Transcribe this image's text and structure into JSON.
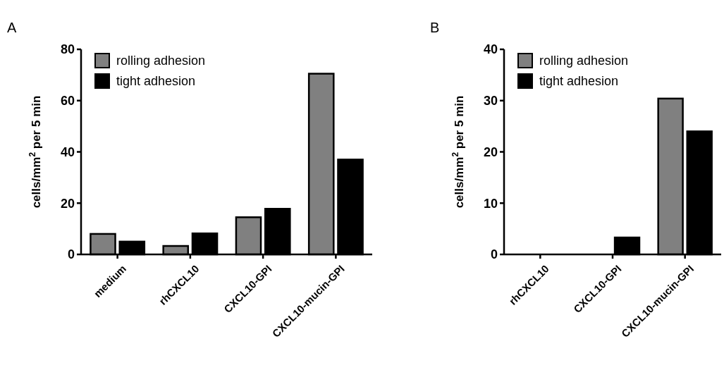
{
  "chart_data": [
    {
      "type": "bar",
      "title": "A",
      "ylabel": "cells/mm$^{2}$ per 5 min",
      "categories": [
        "medium",
        "rhCXCL10",
        "CXCL10-GPI",
        "CXCL10-mucin-GPI"
      ],
      "series": [
        {
          "name": "rolling adhesion",
          "color": "#808080",
          "values": [
            8,
            3.3,
            14.5,
            70.5
          ]
        },
        {
          "name": "tight adhesion",
          "color": "#000000",
          "values": [
            5,
            8.2,
            17.8,
            37
          ]
        }
      ],
      "ylim": [
        0,
        80
      ],
      "yticks": [
        0,
        20,
        40,
        60,
        80
      ],
      "grid": false,
      "legend": "top left"
    },
    {
      "type": "bar",
      "title": "B",
      "ylabel": "cells/mm$^{2}$ per 5 min",
      "categories": [
        "rhCXCL10",
        "CXCL10-GPI",
        "CXCL10-mucin-GPI"
      ],
      "series": [
        {
          "name": "rolling adhesion",
          "color": "#808080",
          "values": [
            0,
            0,
            30.4
          ]
        },
        {
          "name": "tight adhesion",
          "color": "#000000",
          "values": [
            0,
            3.3,
            24
          ]
        }
      ],
      "ylim": [
        0,
        40
      ],
      "yticks": [
        0,
        10,
        20,
        30,
        40
      ],
      "grid": false,
      "legend": "top left"
    }
  ]
}
